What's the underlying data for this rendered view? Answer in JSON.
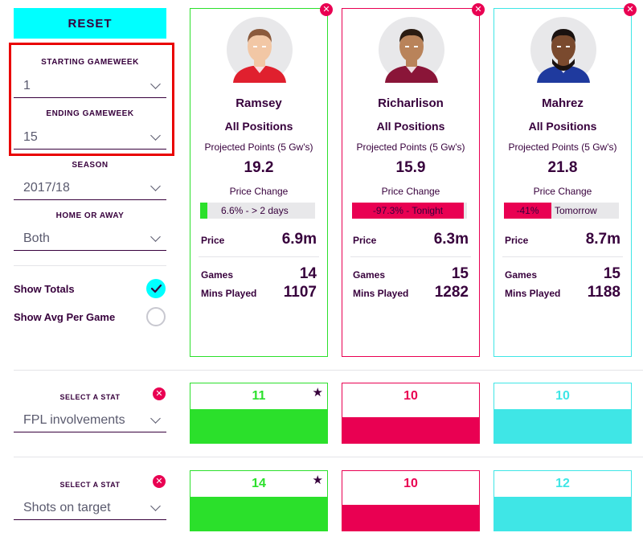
{
  "sidebar": {
    "reset_label": "RESET",
    "starting_gameweek": {
      "label": "STARTING GAMEWEEK",
      "value": "1"
    },
    "ending_gameweek": {
      "label": "ENDING GAMEWEEK",
      "value": "15"
    },
    "season": {
      "label": "SEASON",
      "value": "2017/18"
    },
    "home_or_away": {
      "label": "HOME OR AWAY",
      "value": "Both"
    },
    "show_totals": {
      "label": "Show Totals",
      "checked": true
    },
    "show_avg": {
      "label": "Show Avg Per Game",
      "checked": false
    }
  },
  "players": [
    {
      "name": "Ramsey",
      "position": "All Positions",
      "projected_label": "Projected Points (5 Gw's)",
      "projected": "19.2",
      "price_change_label": "Price Change",
      "price_change_text": "6.6% - > 2 days",
      "price_change_pct": 6.6,
      "price_change_dir": "up",
      "price_label": "Price",
      "price": "6.9m",
      "games_label": "Games",
      "games": "14",
      "mins_label": "Mins Played",
      "mins": "1107",
      "color": "#2be02b",
      "shirt": "#e0202e",
      "skin": "#f2c7a5",
      "hair": "#8b5a3c"
    },
    {
      "name": "Richarlison",
      "position": "All Positions",
      "projected_label": "Projected Points (5 Gw's)",
      "projected": "15.9",
      "price_change_label": "Price Change",
      "price_change_text": "-97.3% - Tonight",
      "price_change_pct": 97.3,
      "price_change_dir": "down",
      "price_label": "Price",
      "price": "6.3m",
      "games_label": "Games",
      "games": "15",
      "mins_label": "Mins Played",
      "mins": "1282",
      "color": "#e90052",
      "shirt": "#8a1538",
      "skin": "#b9835a",
      "hair": "#2b1c12"
    },
    {
      "name": "Mahrez",
      "position": "All Positions",
      "projected_label": "Projected Points (5 Gw's)",
      "projected": "21.8",
      "price_change_label": "Price Change",
      "price_change_text": "-41%",
      "price_change_after": "Tomorrow",
      "price_change_pct": 41,
      "price_change_dir": "down",
      "price_label": "Price",
      "price": "8.7m",
      "games_label": "Games",
      "games": "15",
      "mins_label": "Mins Played",
      "mins": "1188",
      "color": "#3fe6e6",
      "shirt": "#1f3a9e",
      "skin": "#7a4a2e",
      "hair": "#1a1210"
    }
  ],
  "stat_rows": [
    {
      "select_label": "SELECT A STAT",
      "stat": "FPL involvements",
      "values": [
        "11",
        "10",
        "10"
      ],
      "leader": 0
    },
    {
      "select_label": "SELECT A STAT",
      "stat": "Shots on target",
      "values": [
        "14",
        "10",
        "12"
      ],
      "leader": 0
    }
  ],
  "icons": {
    "remove": "close-icon",
    "leader": "star-icon",
    "check": "check-icon",
    "dropdown": "chevron-down-icon"
  },
  "colors": {
    "accent": "#00ffff",
    "brand": "#37003c",
    "alert": "#e90052",
    "highlight": "#e90000"
  }
}
